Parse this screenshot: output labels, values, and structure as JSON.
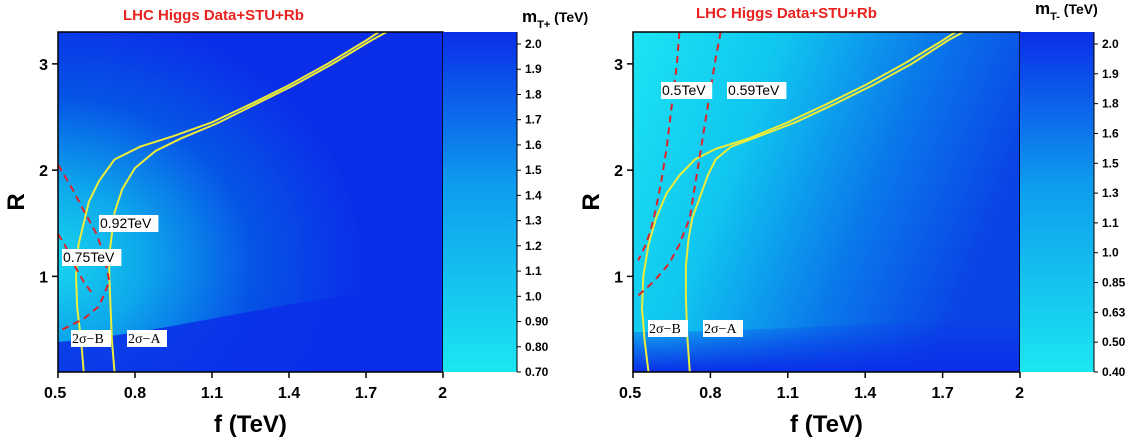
{
  "chart_data": [
    {
      "type": "heatmap",
      "title": "LHC Higgs Data+STU+Rb",
      "xlabel": "f (TeV)",
      "ylabel": "R",
      "xlim": [
        0.5,
        2.0
      ],
      "ylim": [
        0.1,
        3.3
      ],
      "x_ticks": [
        "0.5",
        "0.8",
        "1.1",
        "1.4",
        "1.7",
        "2"
      ],
      "y_ticks": [
        "1",
        "2",
        "3"
      ],
      "colorbar": {
        "title": "m",
        "subscript": "T+",
        "unit": "(TeV)",
        "ticks": [
          "2.0",
          "1.9",
          "1.8",
          "1.7",
          "1.6",
          "1.5",
          "1.4",
          "1.3",
          "1.2",
          "1.1",
          "1.0",
          "0.90",
          "0.80",
          "0.70"
        ]
      },
      "yellow_contours": [
        {
          "label": "2σ−B",
          "x": [
            1.75,
            1.7,
            1.55,
            1.4,
            1.25,
            1.1,
            0.95,
            0.82,
            0.72,
            0.66,
            0.62,
            0.6,
            0.58,
            0.57,
            0.575,
            0.59,
            0.6
          ],
          "y": [
            3.3,
            3.22,
            3.0,
            2.8,
            2.62,
            2.45,
            2.32,
            2.22,
            2.1,
            1.9,
            1.7,
            1.5,
            1.3,
            1.0,
            0.7,
            0.4,
            0.1
          ]
        },
        {
          "label": "2σ−A",
          "x": [
            1.78,
            1.72,
            1.57,
            1.42,
            1.27,
            1.12,
            0.98,
            0.88,
            0.8,
            0.75,
            0.72,
            0.71,
            0.7,
            0.7,
            0.705,
            0.71,
            0.72
          ],
          "y": [
            3.3,
            3.22,
            3.0,
            2.8,
            2.62,
            2.44,
            2.3,
            2.18,
            2.02,
            1.82,
            1.6,
            1.4,
            1.2,
            1.0,
            0.7,
            0.4,
            0.1
          ]
        }
      ],
      "red_contours": [
        {
          "label": "0.75TeV",
          "x": [
            0.5,
            0.53,
            0.56,
            0.6,
            0.63
          ],
          "y": [
            1.4,
            1.28,
            1.12,
            0.95,
            0.85
          ]
        },
        {
          "label": "0.92TeV",
          "x": [
            0.5,
            0.55,
            0.6,
            0.65,
            0.68,
            0.7,
            0.66,
            0.6,
            0.55,
            0.5
          ],
          "y": [
            2.05,
            1.85,
            1.62,
            1.4,
            1.2,
            0.95,
            0.72,
            0.6,
            0.54,
            0.48
          ]
        }
      ]
    },
    {
      "type": "heatmap",
      "title": "LHC Higgs Data+STU+Rb",
      "xlabel": "f (TeV)",
      "ylabel": "R",
      "xlim": [
        0.5,
        2.0
      ],
      "ylim": [
        0.1,
        3.3
      ],
      "x_ticks": [
        "0.5",
        "0.8",
        "1.1",
        "1.4",
        "1.7",
        "2"
      ],
      "y_ticks": [
        "1",
        "2",
        "3"
      ],
      "colorbar": {
        "title": "m",
        "subscript": "T-",
        "unit": "(TeV)",
        "ticks": [
          "2.0",
          "1.9",
          "1.8",
          "1.6",
          "1.5",
          "1.3",
          "1.1",
          "1.0",
          "0.85",
          "0.63",
          "0.50",
          "0.40"
        ]
      },
      "yellow_contours": [
        {
          "label": "2σ−B",
          "x": [
            1.75,
            1.7,
            1.55,
            1.4,
            1.25,
            1.1,
            0.95,
            0.82,
            0.74,
            0.68,
            0.63,
            0.59,
            0.56,
            0.54,
            0.535,
            0.545,
            0.56
          ],
          "y": [
            3.3,
            3.22,
            3.0,
            2.8,
            2.62,
            2.45,
            2.3,
            2.2,
            2.1,
            1.95,
            1.78,
            1.55,
            1.3,
            1.0,
            0.7,
            0.4,
            0.1
          ]
        },
        {
          "label": "2σ−A",
          "x": [
            1.78,
            1.72,
            1.58,
            1.43,
            1.28,
            1.13,
            0.99,
            0.88,
            0.82,
            0.79,
            0.76,
            0.73,
            0.715,
            0.705,
            0.705,
            0.71,
            0.72
          ],
          "y": [
            3.3,
            3.22,
            3.0,
            2.8,
            2.62,
            2.45,
            2.32,
            2.22,
            2.1,
            1.95,
            1.75,
            1.55,
            1.35,
            1.1,
            0.8,
            0.45,
            0.1
          ]
        }
      ],
      "red_contours": [
        {
          "label": "0.5TeV",
          "x": [
            0.68,
            0.67,
            0.65,
            0.63,
            0.61,
            0.59,
            0.57,
            0.55,
            0.52
          ],
          "y": [
            3.3,
            3.0,
            2.6,
            2.2,
            1.9,
            1.65,
            1.45,
            1.3,
            1.15
          ]
        },
        {
          "label": "0.59TeV",
          "x": [
            0.84,
            0.82,
            0.8,
            0.78,
            0.76,
            0.74,
            0.72,
            0.68,
            0.64,
            0.58,
            0.52
          ],
          "y": [
            3.3,
            3.05,
            2.75,
            2.45,
            2.15,
            1.85,
            1.55,
            1.3,
            1.12,
            0.95,
            0.82
          ]
        }
      ]
    }
  ]
}
